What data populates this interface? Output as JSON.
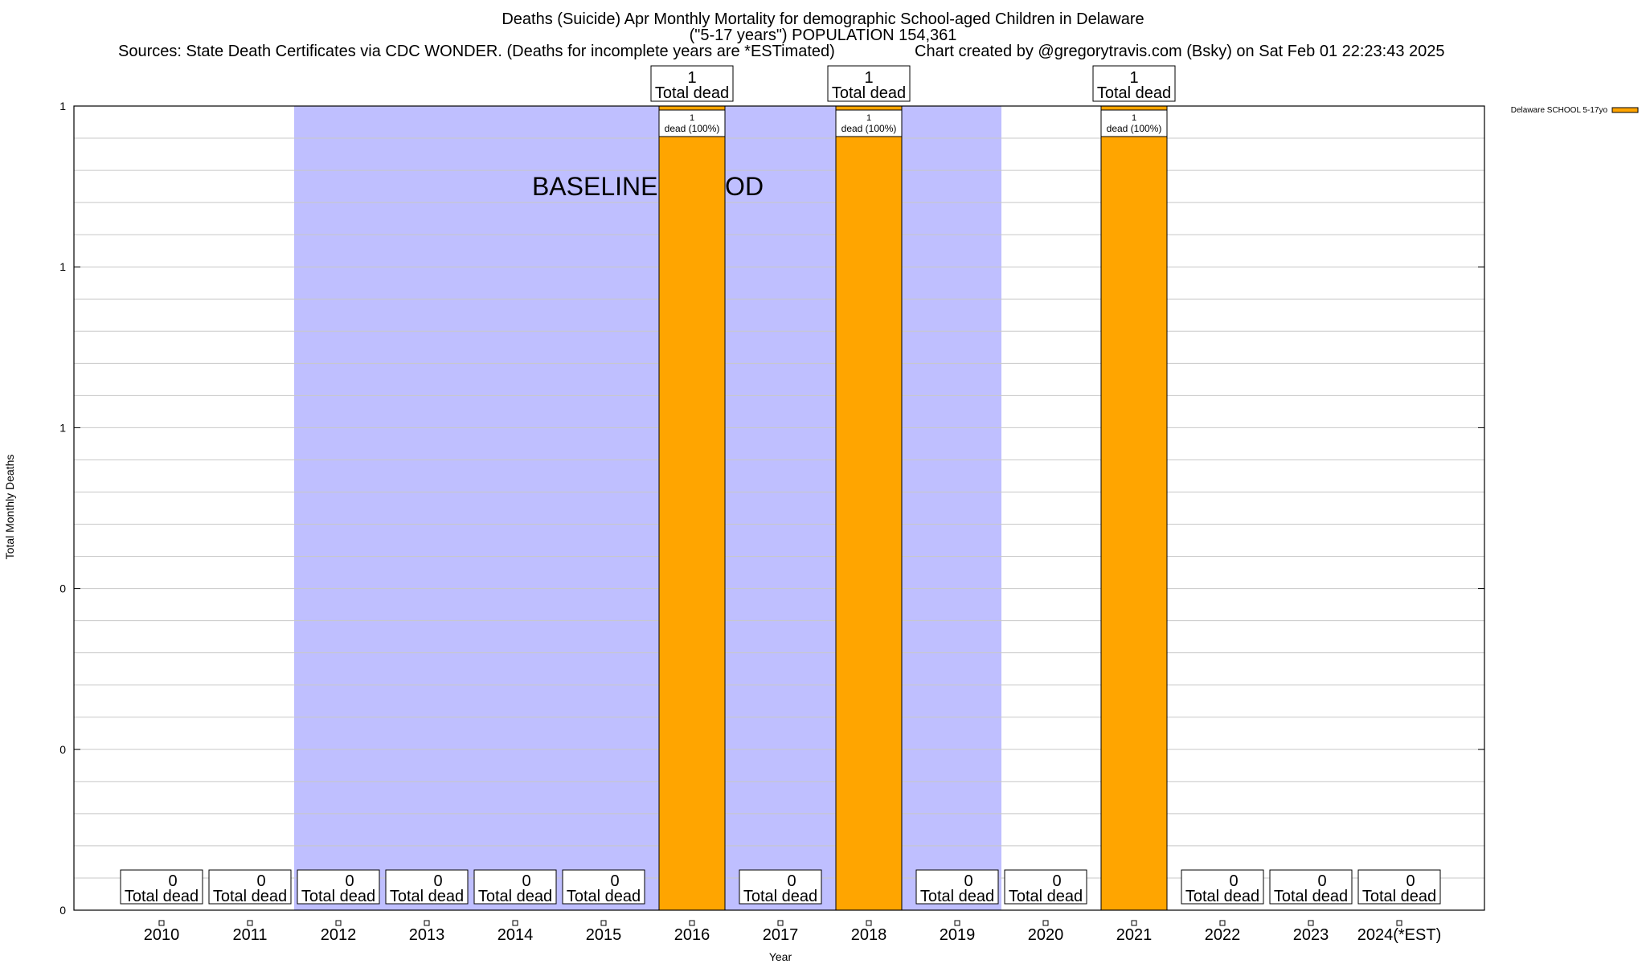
{
  "chart_data": {
    "type": "bar",
    "title_lines": [
      "Deaths (Suicide) Apr Monthly Mortality for demographic School-aged Children in Delaware",
      "(\"5-17 years\") POPULATION 154,361"
    ],
    "sources": "Sources: State Death Certificates via CDC WONDER. (Deaths for incomplete years are *ESTimated)",
    "credit": "Chart created by @gregorytravis.com (Bsky) on Sat Feb 01 22:23:43 2025",
    "xlabel": "Year",
    "ylabel": "Total Monthly Deaths",
    "ylim": [
      0,
      1
    ],
    "yticks": [
      0,
      0.2,
      0.4,
      0.6,
      0.8,
      1.0
    ],
    "ytick_labels": [
      "0",
      "0",
      "0",
      "1",
      "1",
      "1"
    ],
    "categories": [
      "2010",
      "2011",
      "2012",
      "2013",
      "2014",
      "2015",
      "2016",
      "2017",
      "2018",
      "2019",
      "2020",
      "2021",
      "2022",
      "2023",
      "2024(*EST)"
    ],
    "series": [
      {
        "name": "Delaware SCHOOL 5-17yo",
        "color": "#ffa500",
        "values": [
          0,
          0,
          0,
          0,
          0,
          0,
          1,
          0,
          1,
          0,
          0,
          1,
          0,
          0,
          0
        ]
      }
    ],
    "total_label": "Total dead",
    "segment_label": "dead (100%)",
    "baseline": {
      "label": "BASELINE PERIOD",
      "start": "2012",
      "end": "2019",
      "color": "#bfbfff"
    }
  }
}
